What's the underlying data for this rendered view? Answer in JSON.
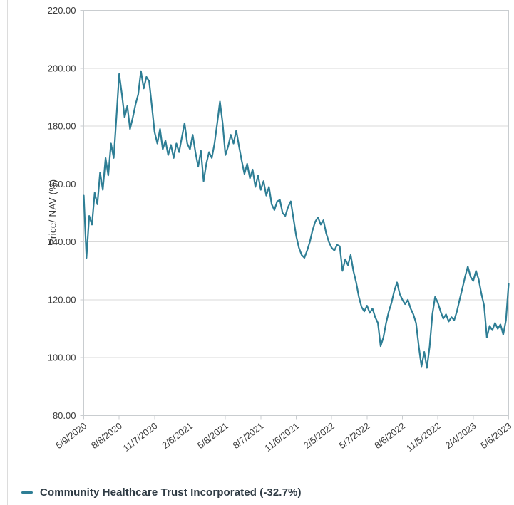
{
  "chart": {
    "colors": {
      "line": "#2E7E95",
      "grid": "#d8d8d8",
      "plot_border": "#c9cdd0",
      "tick_mark": "#c9cdd0",
      "tick_text": "#3d3d3d",
      "legend_text": "#2f3b44",
      "background": "#ffffff"
    }
  },
  "chart_data": {
    "type": "line",
    "title": "",
    "xlabel": "",
    "ylabel": "Price/ NAV (%)",
    "ylim": [
      80,
      220
    ],
    "grid": "horizontal-only",
    "legend_position": "bottom-left",
    "y_ticks": [
      "220.00",
      "200.00",
      "180.00",
      "160.00",
      "140.00",
      "120.00",
      "100.00",
      "80.00"
    ],
    "x_tick_labels": [
      "5/9/2020",
      "8/8/2020",
      "11/7/2020",
      "2/6/2021",
      "5/8/2021",
      "8/7/2021",
      "11/6/2021",
      "2/5/2022",
      "5/7/2022",
      "8/6/2022",
      "11/5/2022",
      "2/4/2023",
      "5/6/2023"
    ],
    "x_tick_indices": [
      0,
      13,
      26,
      39,
      52,
      65,
      78,
      91,
      104,
      117,
      130,
      143,
      156
    ],
    "series": [
      {
        "name": "Community Healthcare Trust Incorporated (-32.7%)",
        "color": "#2E7E95",
        "sampling": "weekly points from 5/9/2020 to 5/6/2023",
        "values": [
          156,
          134.5,
          149,
          146,
          157,
          153,
          164,
          158,
          169,
          163,
          174,
          169,
          183,
          198,
          191,
          183,
          187,
          179,
          183,
          187.5,
          191,
          199,
          193,
          197,
          195.5,
          187,
          178,
          174,
          179,
          172,
          175,
          170,
          173.5,
          169,
          174,
          171,
          176,
          181,
          174,
          172,
          177,
          171,
          166,
          171.5,
          161,
          167,
          171,
          169,
          174,
          181,
          188.5,
          181,
          170,
          173,
          177,
          174,
          178.5,
          173,
          168,
          163.5,
          167,
          162,
          165,
          159,
          163,
          158,
          161,
          156,
          159,
          153,
          151,
          154,
          154.5,
          150,
          149,
          152,
          154,
          148,
          142,
          138,
          135.5,
          134.5,
          137,
          140,
          144,
          147,
          148.5,
          146,
          147.5,
          143,
          140,
          138,
          137,
          139,
          138.5,
          130,
          134,
          132,
          135.5,
          130,
          126,
          121,
          117.5,
          116,
          118,
          115.5,
          117,
          114,
          112,
          104,
          107,
          112,
          116,
          119,
          123,
          126,
          122,
          120,
          118.5,
          120,
          117,
          115,
          112,
          104,
          97,
          102,
          96.5,
          104,
          115,
          121,
          119,
          116,
          113.5,
          115,
          112.5,
          114,
          113,
          116,
          120,
          124,
          128,
          131.5,
          128,
          126.5,
          130,
          127,
          122,
          118,
          107,
          111,
          109.5,
          112,
          110,
          111.5,
          108,
          113,
          125.5
        ]
      }
    ]
  }
}
